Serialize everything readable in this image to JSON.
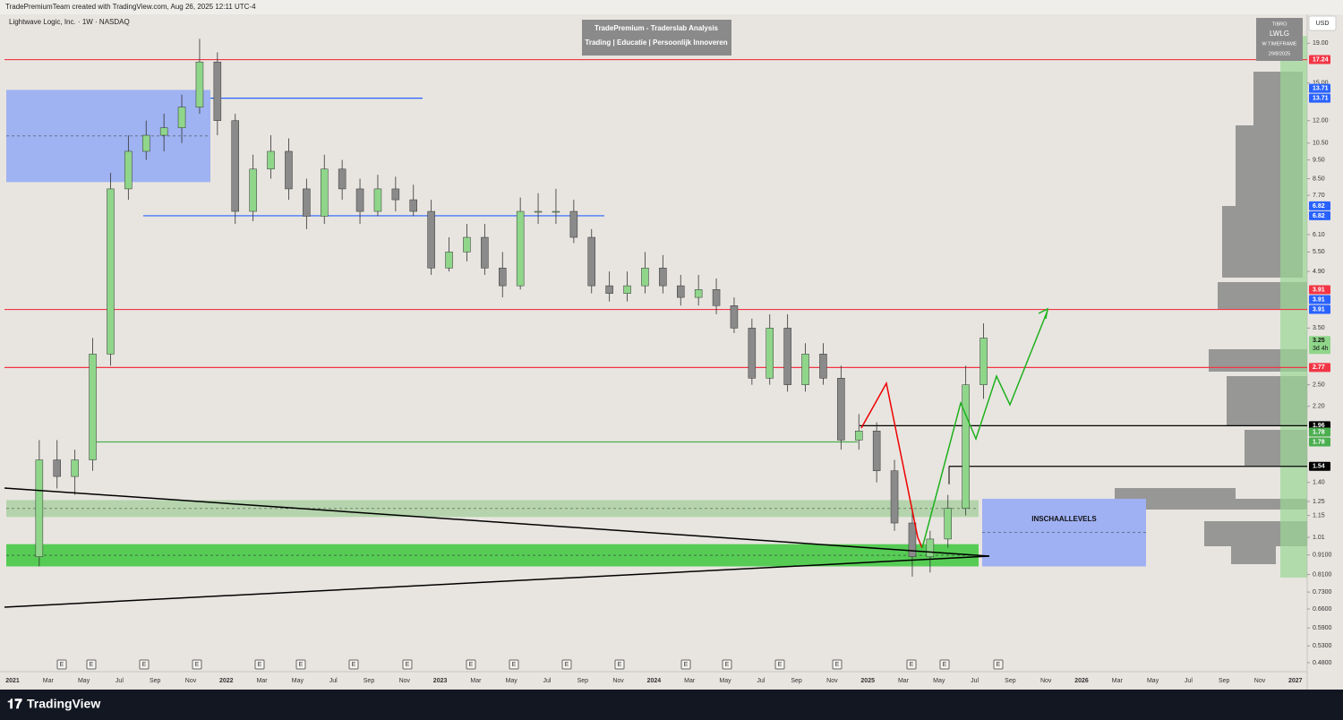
{
  "chart_data": {
    "type": "candlestick",
    "header": "TradePremiumTeam created with TradingView.com, Aug 26, 2025 12:11 UTC-4",
    "symbol": "Lightwave Logic, Inc. · 1W · NASDAQ",
    "banner_title": "TradePremium - Traderslab Analysis",
    "banner_subtitle": "Trading | Educatie | Persoonlijk Innoveren",
    "info_box": [
      "TIBRO",
      "LWLG",
      "W TIMEFRAME",
      "29/8/2025"
    ],
    "currency": "USD",
    "logo": "TradingView",
    "log_scale": true,
    "ylim": [
      0.455,
      22.8
    ],
    "yticks": [
      {
        "value": 19,
        "label": "19.00"
      },
      {
        "value": 15,
        "label": "15.00"
      },
      {
        "value": 12,
        "label": "12.00"
      },
      {
        "value": 10.5,
        "label": "10.50"
      },
      {
        "value": 9.5,
        "label": "9.50"
      },
      {
        "value": 8.5,
        "label": "8.50"
      },
      {
        "value": 7.7,
        "label": "7.70"
      },
      {
        "value": 6.1,
        "label": "6.10"
      },
      {
        "value": 5.5,
        "label": "5.50"
      },
      {
        "value": 4.9,
        "label": "4.90"
      },
      {
        "value": 3.5,
        "label": "3.50"
      },
      {
        "value": 2.5,
        "label": "2.50"
      },
      {
        "value": 2.2,
        "label": "2.20"
      },
      {
        "value": 1.4,
        "label": "1.40"
      },
      {
        "value": 1.25,
        "label": "1.25"
      },
      {
        "value": 1.15,
        "label": "1.15"
      },
      {
        "value": 1.01,
        "label": "1.01"
      },
      {
        "value": 0.91,
        "label": "0.9100"
      },
      {
        "value": 0.81,
        "label": "0.8100"
      },
      {
        "value": 0.73,
        "label": "0.7300"
      },
      {
        "value": 0.66,
        "label": "0.6600"
      },
      {
        "value": 0.59,
        "label": "0.5900"
      },
      {
        "value": 0.53,
        "label": "0.5300"
      },
      {
        "value": 0.48,
        "label": "0.4800"
      }
    ],
    "x_labels": [
      "2021",
      "Mar",
      "May",
      "Jul",
      "Sep",
      "Nov",
      "2022",
      "Mar",
      "May",
      "Jul",
      "Sep",
      "Nov",
      "2023",
      "Mar",
      "May",
      "Jul",
      "Sep",
      "Nov",
      "2024",
      "Mar",
      "May",
      "Jul",
      "Sep",
      "Nov",
      "2025",
      "Mar",
      "May",
      "Jul",
      "Sep",
      "Nov",
      "2026",
      "Mar",
      "May",
      "Jul",
      "Sep",
      "Nov",
      "2027"
    ],
    "earnings_marker": "E",
    "up_color": "#8fd68a",
    "down_color": "#8a8a8a",
    "open": [
      0.9,
      1.6,
      1.45,
      1.6,
      3.0,
      8,
      10,
      11,
      11.5,
      13,
      17,
      12,
      7,
      9,
      10,
      8,
      6.8,
      9,
      8,
      7,
      8,
      7.5,
      7,
      5,
      5.5,
      6,
      5,
      4.5,
      7,
      7,
      7,
      6,
      4.5,
      4.3,
      4.5,
      5,
      4.5,
      4.2,
      4.4,
      4,
      3.5,
      2.6,
      3.5,
      2.5,
      3,
      2.6,
      1.8,
      1.9,
      1.5,
      1.1,
      0.9,
      1.0,
      1.2,
      2.5
    ],
    "high": [
      1.8,
      1.8,
      1.7,
      3.3,
      8.8,
      11,
      12,
      12.5,
      14,
      19.5,
      18,
      12.5,
      9.8,
      11,
      10.8,
      8.5,
      9.8,
      9.5,
      8.5,
      8.7,
      8.6,
      8.2,
      7.5,
      6,
      6.5,
      6.5,
      5.5,
      7.6,
      7.8,
      8,
      7.5,
      6.3,
      4.9,
      4.9,
      5.5,
      5.4,
      4.8,
      4.8,
      4.7,
      4.2,
      3.7,
      3.8,
      3.8,
      3.2,
      3.2,
      2.8,
      2.1,
      2.0,
      1.6,
      1.2,
      1.05,
      1.3,
      2.8,
      3.6
    ],
    "low": [
      0.85,
      1.35,
      1.3,
      1.5,
      2.8,
      7.5,
      9.5,
      10,
      10.5,
      12.5,
      11,
      6.5,
      6.6,
      8.5,
      7.5,
      6.3,
      6.5,
      7.5,
      6.5,
      6.8,
      7,
      6.8,
      4.8,
      4.9,
      5.2,
      4.8,
      4.2,
      4.4,
      6.5,
      6.5,
      5.8,
      4.3,
      4.1,
      4.1,
      4.3,
      4.3,
      4.0,
      4.0,
      3.8,
      3.4,
      2.5,
      2.5,
      2.4,
      2.4,
      2.5,
      1.7,
      1.7,
      1.4,
      1.05,
      0.8,
      0.82,
      0.95,
      1.15,
      2.3
    ],
    "close": [
      1.6,
      1.45,
      1.6,
      3.0,
      8,
      10,
      11,
      11.5,
      13,
      17,
      12,
      7,
      9,
      10,
      8,
      6.8,
      9,
      8,
      7,
      8,
      7.5,
      7,
      5,
      5.5,
      6,
      5,
      4.5,
      7,
      7,
      7,
      6,
      4.5,
      4.3,
      4.5,
      5,
      4.5,
      4.2,
      4.4,
      4,
      3.5,
      2.6,
      3.5,
      2.5,
      3,
      2.6,
      1.8,
      1.9,
      1.5,
      1.1,
      0.9,
      1.0,
      1.2,
      2.5,
      3.3
    ],
    "levels": [
      {
        "value": 17.24,
        "color": "#f23645"
      },
      {
        "value": 13.71,
        "color": "#2962ff"
      },
      {
        "value": 6.82,
        "color": "#2962ff"
      },
      {
        "value": 3.91,
        "color": "#f23645"
      },
      {
        "value": 2.77,
        "color": "#f23645"
      },
      {
        "value": 1.96,
        "color": "#000000"
      },
      {
        "value": 1.78,
        "color": "#4caf50"
      },
      {
        "value": 1.54,
        "color": "#000000"
      }
    ],
    "zones": [
      {
        "top": 14.4,
        "bottom": 8.33,
        "color": "rgba(98,137,255,0.55)"
      },
      {
        "top": 1.26,
        "bottom": 1.14,
        "color": "rgba(120,190,110,0.45)"
      },
      {
        "top": 0.97,
        "bottom": 0.85,
        "color": "rgba(60,200,60,0.85)"
      },
      {
        "top": 1.27,
        "bottom": 0.85,
        "color": "rgba(110,140,255,0.6)",
        "label": "INSCHAALLEVELS"
      }
    ],
    "price_labels": [
      {
        "value": 17.24,
        "color": "#f23645"
      },
      {
        "value": 13.71,
        "color": "#2962ff"
      },
      {
        "value": 13.71,
        "color": "#2962ff"
      },
      {
        "value": 6.82,
        "color": "#2962ff"
      },
      {
        "value": 6.82,
        "color": "#2962ff"
      },
      {
        "value": 3.91,
        "color": "#f23645"
      },
      {
        "value": 3.91,
        "color": "#2962ff"
      },
      {
        "value": 3.91,
        "color": "#2962ff"
      },
      {
        "value": 3.25,
        "color": "#8fd68a",
        "countdown": "3d 4h"
      },
      {
        "value": 2.77,
        "color": "#f23645"
      },
      {
        "value": 1.96,
        "color": "#000000"
      },
      {
        "value": 1.78,
        "color": "#4caf50"
      },
      {
        "value": 1.78,
        "color": "#4caf50"
      },
      {
        "value": 1.54,
        "color": "#000000"
      }
    ]
  }
}
